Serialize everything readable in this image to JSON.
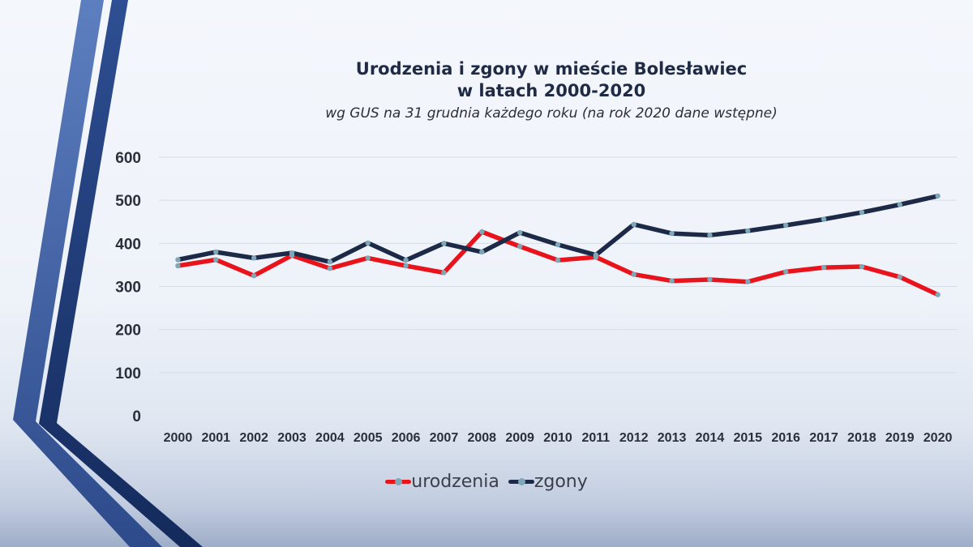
{
  "title_line1": "Urodzenia i zgony w mieście Bolesławiec",
  "title_line2": "w latach 2000-2020",
  "subtitle": "wg GUS na 31 grudnia każdego roku (na rok 2020 dane wstępne)",
  "colors": {
    "births": "#e8131b",
    "deaths": "#1d2a47",
    "marker": "#7fa7b8",
    "gridline": "#d7dce6",
    "text": "#2a2f3a"
  },
  "chart_data": {
    "type": "line",
    "title": "Urodzenia i zgony w mieście Bolesławiec w latach 2000-2020",
    "subtitle": "wg GUS na 31 grudnia każdego roku (na rok 2020 dane wstępne)",
    "xlabel": "",
    "ylabel": "",
    "categories": [
      "2000",
      "2001",
      "2002",
      "2003",
      "2004",
      "2005",
      "2006",
      "2007",
      "2008",
      "2009",
      "2010",
      "2011",
      "2012",
      "2013",
      "2014",
      "2015",
      "2016",
      "2017",
      "2018",
      "2019",
      "2020"
    ],
    "ylim": [
      0,
      600
    ],
    "yticks": [
      "0",
      "100",
      "200",
      "300",
      "400",
      "500",
      "600"
    ],
    "grid": true,
    "legend": "bottom",
    "series": [
      {
        "name": "urodzenia",
        "color": "#e8131b",
        "values": [
          348,
          362,
          325,
          372,
          342,
          366,
          348,
          332,
          427,
          393,
          361,
          368,
          328,
          313,
          316,
          311,
          334,
          344,
          346,
          322,
          281
        ]
      },
      {
        "name": "zgony",
        "color": "#1d2a47",
        "values": [
          362,
          380,
          366,
          378,
          357,
          401,
          361,
          400,
          380,
          425,
          397,
          373,
          444,
          423,
          419,
          429,
          442,
          456,
          472,
          490,
          510
        ]
      }
    ]
  },
  "legend": {
    "births_label": "urodzenia",
    "deaths_label": "zgony"
  }
}
